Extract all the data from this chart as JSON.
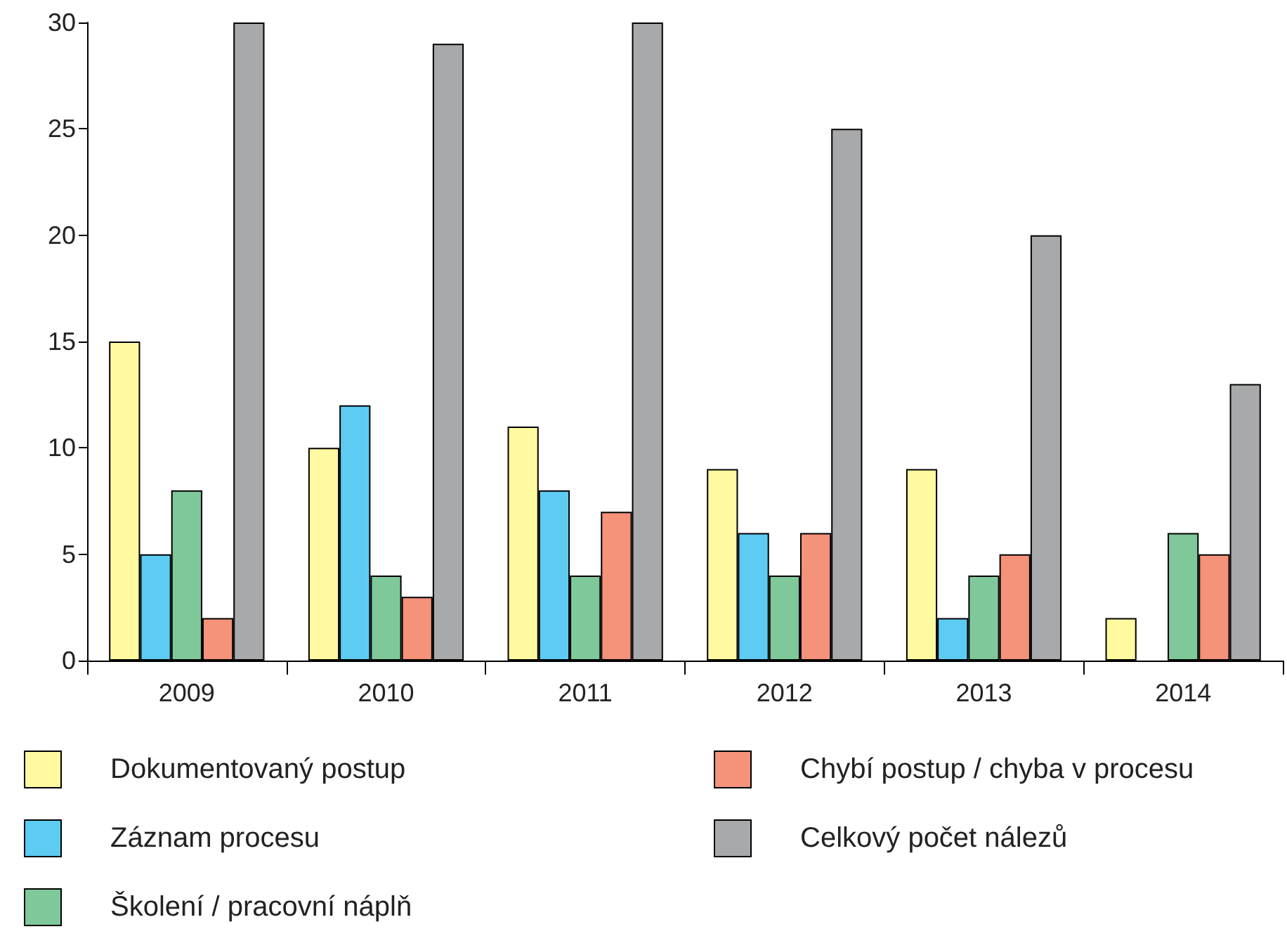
{
  "chart_data": {
    "type": "bar",
    "categories": [
      "2009",
      "2010",
      "2011",
      "2012",
      "2013",
      "2014"
    ],
    "series": [
      {
        "name": "Dokumentovaný postup",
        "color": "#fff9a0",
        "values": [
          15,
          10,
          11,
          9,
          9,
          2
        ]
      },
      {
        "name": "Záznam procesu",
        "color": "#5ecbf3",
        "values": [
          5,
          12,
          8,
          6,
          2,
          0
        ]
      },
      {
        "name": "Školení / pracovní náplň",
        "color": "#7fc89a",
        "values": [
          8,
          4,
          4,
          4,
          4,
          6
        ]
      },
      {
        "name": "Chybí postup / chyba v procesu",
        "color": "#f4927a",
        "values": [
          2,
          3,
          7,
          6,
          5,
          5
        ]
      },
      {
        "name": "Celkový počet nálezů",
        "color": "#a8a9ab",
        "values": [
          30,
          29,
          30,
          25,
          20,
          13
        ]
      }
    ],
    "ylim": [
      0,
      30
    ],
    "yticks": [
      0,
      5,
      10,
      15,
      20,
      25,
      30
    ],
    "grid": false,
    "legend": "bottom"
  }
}
